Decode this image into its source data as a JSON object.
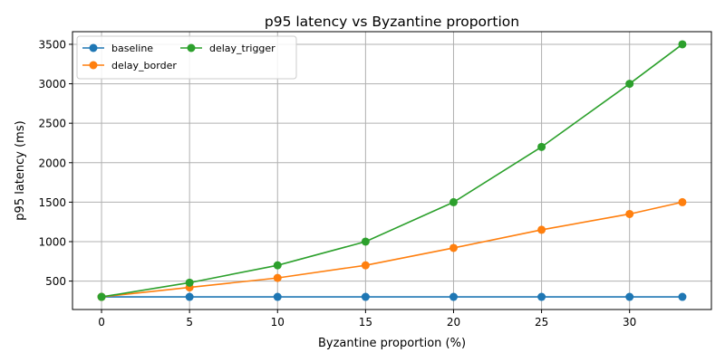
{
  "chart_data": {
    "type": "line",
    "title": "p95 latency vs Byzantine proportion",
    "xlabel": "Byzantine proportion (%)",
    "ylabel": "p95 latency (ms)",
    "x": [
      0,
      5,
      10,
      15,
      20,
      25,
      30,
      33
    ],
    "xticks": [
      0,
      5,
      10,
      15,
      20,
      25,
      30
    ],
    "yticks": [
      500,
      1000,
      1500,
      2000,
      2500,
      3000,
      3500
    ],
    "xlim": [
      -1.65,
      34.65
    ],
    "ylim": [
      140,
      3660
    ],
    "grid": true,
    "legend": {
      "position": "top-left",
      "columns": 2
    },
    "marker": "circle",
    "series": [
      {
        "name": "baseline",
        "color": "#1f77b4",
        "values": [
          300,
          300,
          300,
          300,
          300,
          300,
          300,
          300
        ]
      },
      {
        "name": "delay_border",
        "color": "#ff7f0e",
        "values": [
          300,
          420,
          540,
          700,
          920,
          1150,
          1350,
          1500
        ]
      },
      {
        "name": "delay_trigger",
        "color": "#2ca02c",
        "values": [
          300,
          480,
          700,
          1000,
          1500,
          2200,
          3000,
          3500
        ]
      }
    ]
  }
}
